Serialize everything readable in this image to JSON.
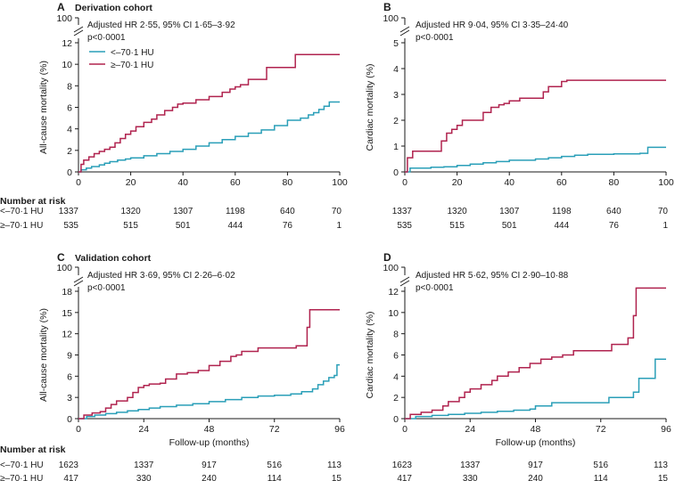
{
  "colors": {
    "low": "#2a9fb8",
    "high": "#b0234f"
  },
  "chart_data": [
    {
      "type": "line",
      "panel": "A",
      "title": "Derivation cohort",
      "xlabel": "",
      "ylabel": "All-cause mortality (%)",
      "xlim": [
        0,
        100
      ],
      "ylim": [
        0,
        12
      ],
      "xticks": [
        "0",
        "20",
        "40",
        "60",
        "80",
        "100"
      ],
      "yticks": [
        "0",
        "2",
        "4",
        "6",
        "8",
        "10",
        "12"
      ],
      "ybreak_label": "100",
      "annotation": "Adjusted HR 2·55, 95% CI 1·65–3·92",
      "pvalue": "p<0·0001",
      "legend": [
        "<–70·1 HU",
        "≥–70·1 HU"
      ],
      "series": [
        {
          "name": "<–70·1 HU",
          "color": "low",
          "x": [
            0,
            1,
            3,
            5,
            8,
            10,
            12,
            15,
            18,
            20,
            25,
            30,
            35,
            40,
            45,
            50,
            55,
            60,
            65,
            70,
            75,
            80,
            85,
            88,
            90,
            92,
            94,
            96,
            100
          ],
          "y": [
            0,
            0.2,
            0.35,
            0.5,
            0.65,
            0.8,
            0.95,
            1.1,
            1.2,
            1.3,
            1.5,
            1.7,
            1.9,
            2.1,
            2.4,
            2.7,
            3.0,
            3.3,
            3.6,
            3.9,
            4.3,
            4.8,
            5.0,
            5.3,
            5.5,
            5.8,
            6.1,
            6.5,
            6.5
          ]
        },
        {
          "name": "≥–70·1 HU",
          "color": "high",
          "x": [
            0,
            1,
            2,
            4,
            6,
            8,
            10,
            12,
            14,
            16,
            18,
            20,
            22,
            25,
            28,
            30,
            33,
            36,
            38,
            40,
            45,
            50,
            55,
            58,
            60,
            62,
            65,
            70,
            72,
            78,
            82,
            83,
            100
          ],
          "y": [
            0,
            0.7,
            1.1,
            1.4,
            1.7,
            1.9,
            2.1,
            2.3,
            2.7,
            3.1,
            3.5,
            3.8,
            4.2,
            4.6,
            4.9,
            5.3,
            5.7,
            6.0,
            6.3,
            6.4,
            6.7,
            7.0,
            7.4,
            7.7,
            7.9,
            8.1,
            8.6,
            8.6,
            9.7,
            9.7,
            9.7,
            10.9,
            10.9
          ]
        }
      ],
      "risk_table": {
        "label": "Number at risk",
        "rows": [
          {
            "name": "<–70·1 HU",
            "values": [
              "1337",
              "1320",
              "1307",
              "1198",
              "640",
              "70"
            ]
          },
          {
            "name": "≥–70·1 HU",
            "values": [
              "535",
              "515",
              "501",
              "444",
              "76",
              "1"
            ]
          }
        ]
      }
    },
    {
      "type": "line",
      "panel": "B",
      "title": "",
      "xlabel": "",
      "ylabel": "Cardiac mortality (%)",
      "xlim": [
        0,
        100
      ],
      "ylim": [
        0,
        5
      ],
      "xticks": [
        "0",
        "20",
        "40",
        "60",
        "80",
        "100"
      ],
      "yticks": [
        "0",
        "1",
        "2",
        "3",
        "4",
        "5"
      ],
      "ybreak_label": "100",
      "annotation": "Adjusted HR 9·04, 95% CI 3·35–24·40",
      "pvalue": "p<0·0001",
      "series": [
        {
          "name": "<–70·1 HU",
          "color": "low",
          "x": [
            0,
            2,
            10,
            15,
            20,
            25,
            30,
            35,
            40,
            50,
            55,
            60,
            65,
            70,
            80,
            90,
            93,
            95,
            100
          ],
          "y": [
            0,
            0.15,
            0.18,
            0.2,
            0.25,
            0.3,
            0.35,
            0.4,
            0.45,
            0.5,
            0.55,
            0.6,
            0.65,
            0.68,
            0.7,
            0.72,
            0.95,
            0.95,
            0.95
          ]
        },
        {
          "name": "≥–70·1 HU",
          "color": "high",
          "x": [
            0,
            1,
            3,
            13,
            14,
            16,
            18,
            20,
            22,
            30,
            33,
            36,
            38,
            40,
            44,
            53,
            55,
            60,
            62,
            100
          ],
          "y": [
            0,
            0.55,
            0.8,
            0.8,
            1.2,
            1.5,
            1.65,
            1.8,
            2.0,
            2.3,
            2.5,
            2.6,
            2.65,
            2.75,
            2.85,
            3.1,
            3.3,
            3.5,
            3.55,
            3.55
          ]
        }
      ],
      "risk_table": {
        "label": "",
        "rows": [
          {
            "name": "<–70·1 HU",
            "values": [
              "1337",
              "1320",
              "1307",
              "1198",
              "640",
              "70"
            ]
          },
          {
            "name": "≥–70·1 HU",
            "values": [
              "535",
              "515",
              "501",
              "444",
              "76",
              "1"
            ]
          }
        ]
      }
    },
    {
      "type": "line",
      "panel": "C",
      "title": "Validation cohort",
      "xlabel": "Follow-up (months)",
      "ylabel": "All-cause mortality (%)",
      "xlim": [
        0,
        96
      ],
      "ylim": [
        0,
        18
      ],
      "xticks": [
        "0",
        "24",
        "48",
        "72",
        "96"
      ],
      "yticks": [
        "0",
        "3",
        "6",
        "9",
        "12",
        "15",
        "18"
      ],
      "ybreak_label": "100",
      "annotation": "Adjusted HR 3·69, 95% CI 2·26–6·02",
      "pvalue": "p<0·0001",
      "series": [
        {
          "name": "<–70·1 HU",
          "color": "low",
          "x": [
            0,
            3,
            6,
            10,
            14,
            18,
            22,
            26,
            30,
            36,
            42,
            48,
            54,
            60,
            66,
            72,
            78,
            82,
            86,
            88,
            90,
            92,
            94,
            95,
            96
          ],
          "y": [
            0,
            0.3,
            0.5,
            0.7,
            0.9,
            1.1,
            1.3,
            1.5,
            1.7,
            1.9,
            2.1,
            2.4,
            2.7,
            3.0,
            3.2,
            3.3,
            3.5,
            3.8,
            4.2,
            4.8,
            5.3,
            5.8,
            6.1,
            7.6,
            7.6
          ]
        },
        {
          "name": "≥–70·1 HU",
          "color": "high",
          "x": [
            0,
            2,
            5,
            8,
            10,
            12,
            14,
            16,
            18,
            20,
            22,
            24,
            26,
            30,
            32,
            36,
            40,
            44,
            48,
            52,
            56,
            58,
            60,
            66,
            72,
            80,
            84,
            85,
            86,
            96
          ],
          "y": [
            0,
            0.5,
            0.8,
            1.0,
            1.5,
            2.0,
            2.5,
            2.5,
            3.0,
            3.7,
            4.4,
            4.7,
            4.9,
            5.0,
            5.6,
            6.3,
            6.5,
            6.8,
            7.5,
            8.1,
            8.8,
            9.0,
            9.5,
            10.0,
            10.0,
            10.3,
            12.9,
            15.4,
            15.4,
            15.4
          ]
        }
      ],
      "risk_table": {
        "label": "Number at risk",
        "rows": [
          {
            "name": "<–70·1 HU",
            "values": [
              "1623",
              "1337",
              "917",
              "516",
              "113"
            ]
          },
          {
            "name": "≥–70·1 HU",
            "values": [
              "417",
              "330",
              "240",
              "114",
              "15"
            ]
          }
        ]
      }
    },
    {
      "type": "line",
      "panel": "D",
      "title": "",
      "xlabel": "Follow-up (months)",
      "ylabel": "Cardiac mortality (%)",
      "xlim": [
        0,
        96
      ],
      "ylim": [
        0,
        12
      ],
      "xticks": [
        "0",
        "24",
        "48",
        "72",
        "96"
      ],
      "yticks": [
        "0",
        "2",
        "4",
        "6",
        "8",
        "10",
        "12"
      ],
      "ybreak_label": "100",
      "annotation": "Adjusted HR 5·62, 95% CI 2·90–10·88",
      "pvalue": "p<0·0001",
      "series": [
        {
          "name": "<–70·1 HU",
          "color": "low",
          "x": [
            0,
            4,
            10,
            16,
            22,
            28,
            34,
            40,
            46,
            48,
            54,
            60,
            70,
            75,
            78,
            84,
            86,
            88,
            92,
            96
          ],
          "y": [
            0,
            0.2,
            0.3,
            0.4,
            0.5,
            0.6,
            0.7,
            0.8,
            0.9,
            1.2,
            1.5,
            1.5,
            1.5,
            2.0,
            2.0,
            2.5,
            3.8,
            3.8,
            5.6,
            5.6
          ]
        },
        {
          "name": "≥–70·1 HU",
          "color": "high",
          "x": [
            0,
            2,
            6,
            10,
            14,
            16,
            20,
            22,
            24,
            28,
            32,
            34,
            38,
            42,
            46,
            50,
            54,
            58,
            62,
            66,
            72,
            76,
            82,
            84,
            85,
            96
          ],
          "y": [
            0,
            0.4,
            0.6,
            0.8,
            1.2,
            1.6,
            2.0,
            2.5,
            2.8,
            3.2,
            3.6,
            4.0,
            4.4,
            4.8,
            5.2,
            5.6,
            5.8,
            6.0,
            6.4,
            6.4,
            6.4,
            7.0,
            7.6,
            9.7,
            12.3,
            12.3
          ]
        }
      ],
      "risk_table": {
        "label": "",
        "rows": [
          {
            "name": "<–70·1 HU",
            "values": [
              "1623",
              "1337",
              "917",
              "516",
              "113"
            ]
          },
          {
            "name": "≥–70·1 HU",
            "values": [
              "417",
              "330",
              "240",
              "114",
              "15"
            ]
          }
        ]
      }
    }
  ]
}
